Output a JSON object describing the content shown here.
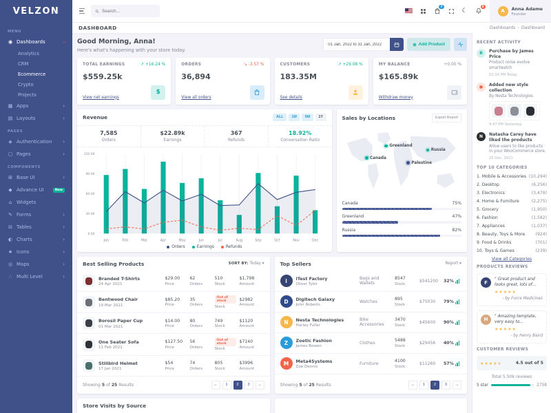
{
  "app": {
    "logo": "VELZON"
  },
  "sidebar": {
    "menu_label": "MENU",
    "sections": [
      {
        "label": "",
        "items": [
          {
            "icon": "dashboards-icon",
            "label": "Dashboards",
            "chevron": "down",
            "active": true,
            "children": [
              {
                "label": "Analytics",
                "active": false
              },
              {
                "label": "CRM",
                "active": false
              },
              {
                "label": "Ecommerce",
                "active": true
              },
              {
                "label": "Crypto",
                "active": false
              },
              {
                "label": "Projects",
                "active": false
              }
            ]
          },
          {
            "icon": "apps-icon",
            "label": "Apps",
            "chevron": "right"
          },
          {
            "icon": "layouts-icon",
            "label": "Layouts",
            "chevron": "right"
          }
        ]
      },
      {
        "label": "PAGES",
        "items": [
          {
            "icon": "authentication-icon",
            "label": "Authentication",
            "chevron": "right"
          },
          {
            "icon": "pages-icon",
            "label": "Pages",
            "chevron": "right"
          }
        ]
      },
      {
        "label": "COMPONENTS",
        "items": [
          {
            "icon": "base-ui-icon",
            "label": "Base UI",
            "chevron": "right"
          },
          {
            "icon": "advance-ui-icon",
            "label": "Advance UI",
            "badge": "New"
          },
          {
            "icon": "widgets-icon",
            "label": "Widgets"
          },
          {
            "icon": "forms-icon",
            "label": "Forms",
            "chevron": "right"
          },
          {
            "icon": "tables-icon",
            "label": "Tables",
            "chevron": "right"
          },
          {
            "icon": "charts-icon",
            "label": "Charts",
            "chevron": "right"
          },
          {
            "icon": "icons-icon",
            "label": "Icons",
            "chevron": "right"
          },
          {
            "icon": "maps-icon",
            "label": "Maps",
            "chevron": "right"
          },
          {
            "icon": "multi-level-icon",
            "label": "Multi Level",
            "chevron": "right"
          }
        ]
      }
    ]
  },
  "topbar": {
    "search_placeholder": "Search...",
    "cart_badge": "7",
    "bell_badge": "3",
    "user": {
      "name": "Anna Adame",
      "role": "Founder",
      "initial": "A"
    }
  },
  "page": {
    "title": "DASHBOARD",
    "breadcrumb": [
      "Dashboards",
      "Dashboard"
    ]
  },
  "greeting": {
    "title": "Good Morning, Anna!",
    "subtitle": "Here's what's happening with your store today.",
    "date_range": "01 Jan, 2022 to 31 Jan, 2022",
    "add_product_label": "Add Product"
  },
  "stat_cards": [
    {
      "label": "TOTAL EARNINGS",
      "delta": "+16.24 %",
      "delta_dir": "up",
      "value": "$559.25k",
      "link": "View net earnings",
      "icon": "dollar-icon",
      "icon_color": "#0ab39c",
      "icon_bg": "rgba(10,179,156,.18)"
    },
    {
      "label": "ORDERS",
      "delta": "-3.57 %",
      "delta_dir": "down",
      "value": "36,894",
      "link": "View all orders",
      "icon": "bag-icon",
      "icon_color": "#299cdb",
      "icon_bg": "rgba(41,156,219,.18)"
    },
    {
      "label": "CUSTOMERS",
      "delta": "+29.08 %",
      "delta_dir": "up",
      "value": "183.35M",
      "link": "See details",
      "icon": "user-icon",
      "icon_color": "#f7b84b",
      "icon_bg": "rgba(247,184,75,.18)"
    },
    {
      "label": "MY BALANCE",
      "delta": "+0.00 %",
      "delta_dir": "flat",
      "value": "$165.89k",
      "link": "Withdraw money",
      "icon": "wallet-icon",
      "icon_color": "#878a99",
      "icon_bg": "#eff2f7"
    }
  ],
  "revenue": {
    "title": "Revenue",
    "range_buttons": [
      {
        "label": "ALL",
        "style": "blue"
      },
      {
        "label": "1M",
        "style": "blue"
      },
      {
        "label": "6M",
        "style": "blue"
      },
      {
        "label": "1Y",
        "style": "gray"
      }
    ],
    "stats": [
      {
        "value": "7,585",
        "label": "Orders",
        "color": "#495057"
      },
      {
        "value": "$22.89k",
        "label": "Earnings",
        "color": "#495057"
      },
      {
        "value": "367",
        "label": "Refunds",
        "color": "#495057"
      },
      {
        "value": "18.92%",
        "label": "Conversation Ratio",
        "color": "#0ab39c"
      }
    ]
  },
  "chart_data": {
    "type": "combo",
    "categories": [
      "Jan",
      "Feb",
      "Mar",
      "Apr",
      "May",
      "Jun",
      "Jul",
      "Aug",
      "Sep",
      "Oct",
      "Nov",
      "Dec"
    ],
    "series": [
      {
        "name": "Orders",
        "type": "area-line",
        "color": "#405189",
        "values": [
          33,
          63,
          46,
          65,
          49,
          59,
          42,
          43,
          75,
          51,
          62,
          66
        ]
      },
      {
        "name": "Earnings",
        "type": "bar",
        "color": "#0ab39c",
        "values": [
          88,
          97,
          67,
          108,
          76,
          83,
          50,
          28,
          91,
          41,
          87,
          35
        ]
      },
      {
        "name": "Refunds",
        "type": "dashed-line",
        "color": "#f06548",
        "values": [
          7,
          10,
          7,
          17,
          20,
          10,
          5,
          8,
          6,
          27,
          12,
          35
        ]
      }
    ],
    "ylim": [
      0,
      120
    ],
    "yticks": [
      "0.00",
      "30.00",
      "60.00",
      "90.00",
      "120.00"
    ],
    "legend_position": "bottom",
    "grid": "vertical"
  },
  "sales_by_locations": {
    "title": "Sales by Locations",
    "export_label": "Export Report",
    "markers": [
      {
        "name": "Canada",
        "color": "#0ab39c",
        "x": 20,
        "y": 42,
        "label_side": "right"
      },
      {
        "name": "Greenland",
        "color": "#0ab39c",
        "x": 36,
        "y": 24,
        "label_side": "right"
      },
      {
        "name": "Russia",
        "color": "#0ab39c",
        "x": 70,
        "y": 30,
        "label_side": "right"
      },
      {
        "name": "Palestine",
        "color": "#405189",
        "x": 54,
        "y": 49,
        "label_side": "right"
      }
    ],
    "bars": [
      {
        "label": "Canada",
        "value": 75,
        "display": "75%"
      },
      {
        "label": "Greenland",
        "value": 47,
        "display": "47%"
      },
      {
        "label": "Russia",
        "value": 82,
        "display": "82%"
      }
    ]
  },
  "best_selling": {
    "title": "Best Selling Products",
    "sort_prefix": "SORT BY:",
    "sort_value": "Today",
    "col_labels": {
      "price": "Price",
      "orders": "Orders",
      "stock": "Stock",
      "amount": "Amount"
    },
    "out_of_stock_label": "Out of stock",
    "rows": [
      {
        "name": "Branded T-Shirts",
        "date": "24 Apr 2021",
        "price": "$29.00",
        "orders": "62",
        "stock": "510",
        "oos": false,
        "amount": "$1,798",
        "thumb_color": "#7d2e2e"
      },
      {
        "name": "Bentwood Chair",
        "date": "19 Mar 2021",
        "price": "$85.20",
        "orders": "35",
        "stock": "",
        "oos": true,
        "amount": "$2982",
        "thumb_color": "#6b6f76"
      },
      {
        "name": "Borosil Paper Cup",
        "date": "01 Mar 2021",
        "price": "$14.00",
        "orders": "80",
        "stock": "749",
        "oos": false,
        "amount": "$1120",
        "thumb_color": "#3a3f45"
      },
      {
        "name": "One Seater Sofa",
        "date": "11 Feb 2021",
        "price": "$127.50",
        "orders": "56",
        "stock": "",
        "oos": true,
        "amount": "$7140",
        "thumb_color": "#2f3237"
      },
      {
        "name": "Stillbird Helmet",
        "date": "17 Jan 2021",
        "price": "$54",
        "orders": "74",
        "stock": "805",
        "oos": false,
        "amount": "$3996",
        "thumb_color": "#4a6f6f"
      }
    ],
    "footer": {
      "showing_pre": "Showing",
      "count": "5",
      "of": "of",
      "total": "25",
      "suffix": "Results",
      "pages": [
        "1",
        "2",
        "3"
      ],
      "active_page": "2",
      "prev": "←",
      "next": "→"
    }
  },
  "top_sellers": {
    "title": "Top Sellers",
    "report_label": "Report",
    "stock_label": "Stock",
    "rows": [
      {
        "company": "iTest Factory",
        "person": "Oliver Tyler",
        "category": "Bags and Wallets",
        "stock": "8547",
        "amount": "$541200",
        "pct": "32%",
        "logo_color": "#364574",
        "initial": "i"
      },
      {
        "company": "Digitech Galaxy",
        "person": "John Roberts",
        "category": "Watches",
        "stock": "895",
        "amount": "$75030",
        "pct": "79%",
        "logo_color": "#2d4a8a",
        "initial": "D"
      },
      {
        "company": "Nesta Technologies",
        "person": "Harley Fuller",
        "category": "Bike Accessories",
        "stock": "3470",
        "amount": "$45600",
        "pct": "90%",
        "logo_color": "#f7b84b",
        "initial": "N"
      },
      {
        "company": "Zoetic Fashion",
        "person": "James Bowen",
        "category": "Clothes",
        "stock": "5488",
        "amount": "$29456",
        "pct": "40%",
        "logo_color": "#299cdb",
        "initial": "Z"
      },
      {
        "company": "Meta4Systems",
        "person": "Zoe Dennis",
        "category": "Furniture",
        "stock": "4100",
        "amount": "$11260",
        "pct": "57%",
        "logo_color": "#f06548",
        "initial": "M"
      }
    ],
    "footer": {
      "showing_pre": "Showing",
      "count": "5",
      "of": "of",
      "total": "25",
      "suffix": "Results",
      "pages": [
        "1",
        "2",
        "3"
      ],
      "active_page": "2",
      "prev": "←",
      "next": "→"
    }
  },
  "recent_activity": {
    "title": "RECENT ACTIVITY",
    "items": [
      {
        "avatar_type": "initial",
        "avatar_text": "R",
        "avatar_bg": "rgba(10,179,156,.18)",
        "avatar_color": "#0ab39c",
        "title": "Purchase by James Price",
        "desc": "Product noise evolve smartwatch",
        "time": "02:14 PM Today",
        "thumbs": []
      },
      {
        "avatar_type": "icon",
        "avatar_text": "●",
        "avatar_bg": "rgba(240,101,72,.18)",
        "avatar_color": "#f06548",
        "title": "Added new style collection",
        "desc": "By Nesta Technologies",
        "time": "9:47 PM Yesterday",
        "thumbs": [
          "#c97f8e",
          "#8a8f98",
          "#2a2d33"
        ]
      },
      {
        "avatar_type": "initial",
        "avatar_text": "N",
        "avatar_bg": "#2b2f32",
        "avatar_color": "#fff",
        "title": "Natasha Carey have liked the products",
        "desc": "Allow users to like products in your WooCommerce store.",
        "time": "25 Dec, 2021",
        "thumbs": []
      }
    ]
  },
  "top_categories": {
    "title": "TOP 10 CATEGORIES",
    "items": [
      {
        "name": "1. Mobile & Accessories",
        "count": "(10,294)"
      },
      {
        "name": "2. Desktop",
        "count": "(6,256)"
      },
      {
        "name": "3. Electronics",
        "count": "(3,479)"
      },
      {
        "name": "4. Home & Furniture",
        "count": "(2,275)"
      },
      {
        "name": "5. Grocery",
        "count": "(1,950)"
      },
      {
        "name": "6. Fashion",
        "count": "(1,582)"
      },
      {
        "name": "7. Appliances",
        "count": "(1,037)"
      },
      {
        "name": "8. Beauty, Toys & More",
        "count": "(924)"
      },
      {
        "name": "9. Food & Drinks",
        "count": "(701)"
      },
      {
        "name": "10. Toys & Games",
        "count": "(239)"
      }
    ],
    "view_all": "View all Categories"
  },
  "products_reviews": {
    "title": "PRODUCTS REVIEWS",
    "items": [
      {
        "quote": "\" Great product and looks great, lots of...",
        "stars": 5,
        "by": "- by Force Medicines",
        "avatar_bg": "#364574",
        "avatar_text": "F"
      },
      {
        "quote": "\" Amazing template, very easy to...",
        "stars": 5,
        "by": "- by Henry Baird",
        "avatar_bg": "#d9a87e",
        "avatar_text": "H"
      }
    ]
  },
  "customer_reviews": {
    "title": "CUSTOMER REVIEWS",
    "score": "4.5 out of 5",
    "full_stars": 4,
    "half_star": true,
    "total": "Total 5.50k reviews",
    "rows": [
      {
        "label": "5 star",
        "value": 92,
        "count": "2758"
      }
    ]
  },
  "bottom": {
    "left_title": "Store Visits by Source"
  },
  "colors": {
    "primary": "#405189",
    "success": "#0ab39c",
    "info": "#299cdb",
    "danger": "#f06548",
    "warning": "#f7b84b",
    "muted": "#878a99"
  }
}
